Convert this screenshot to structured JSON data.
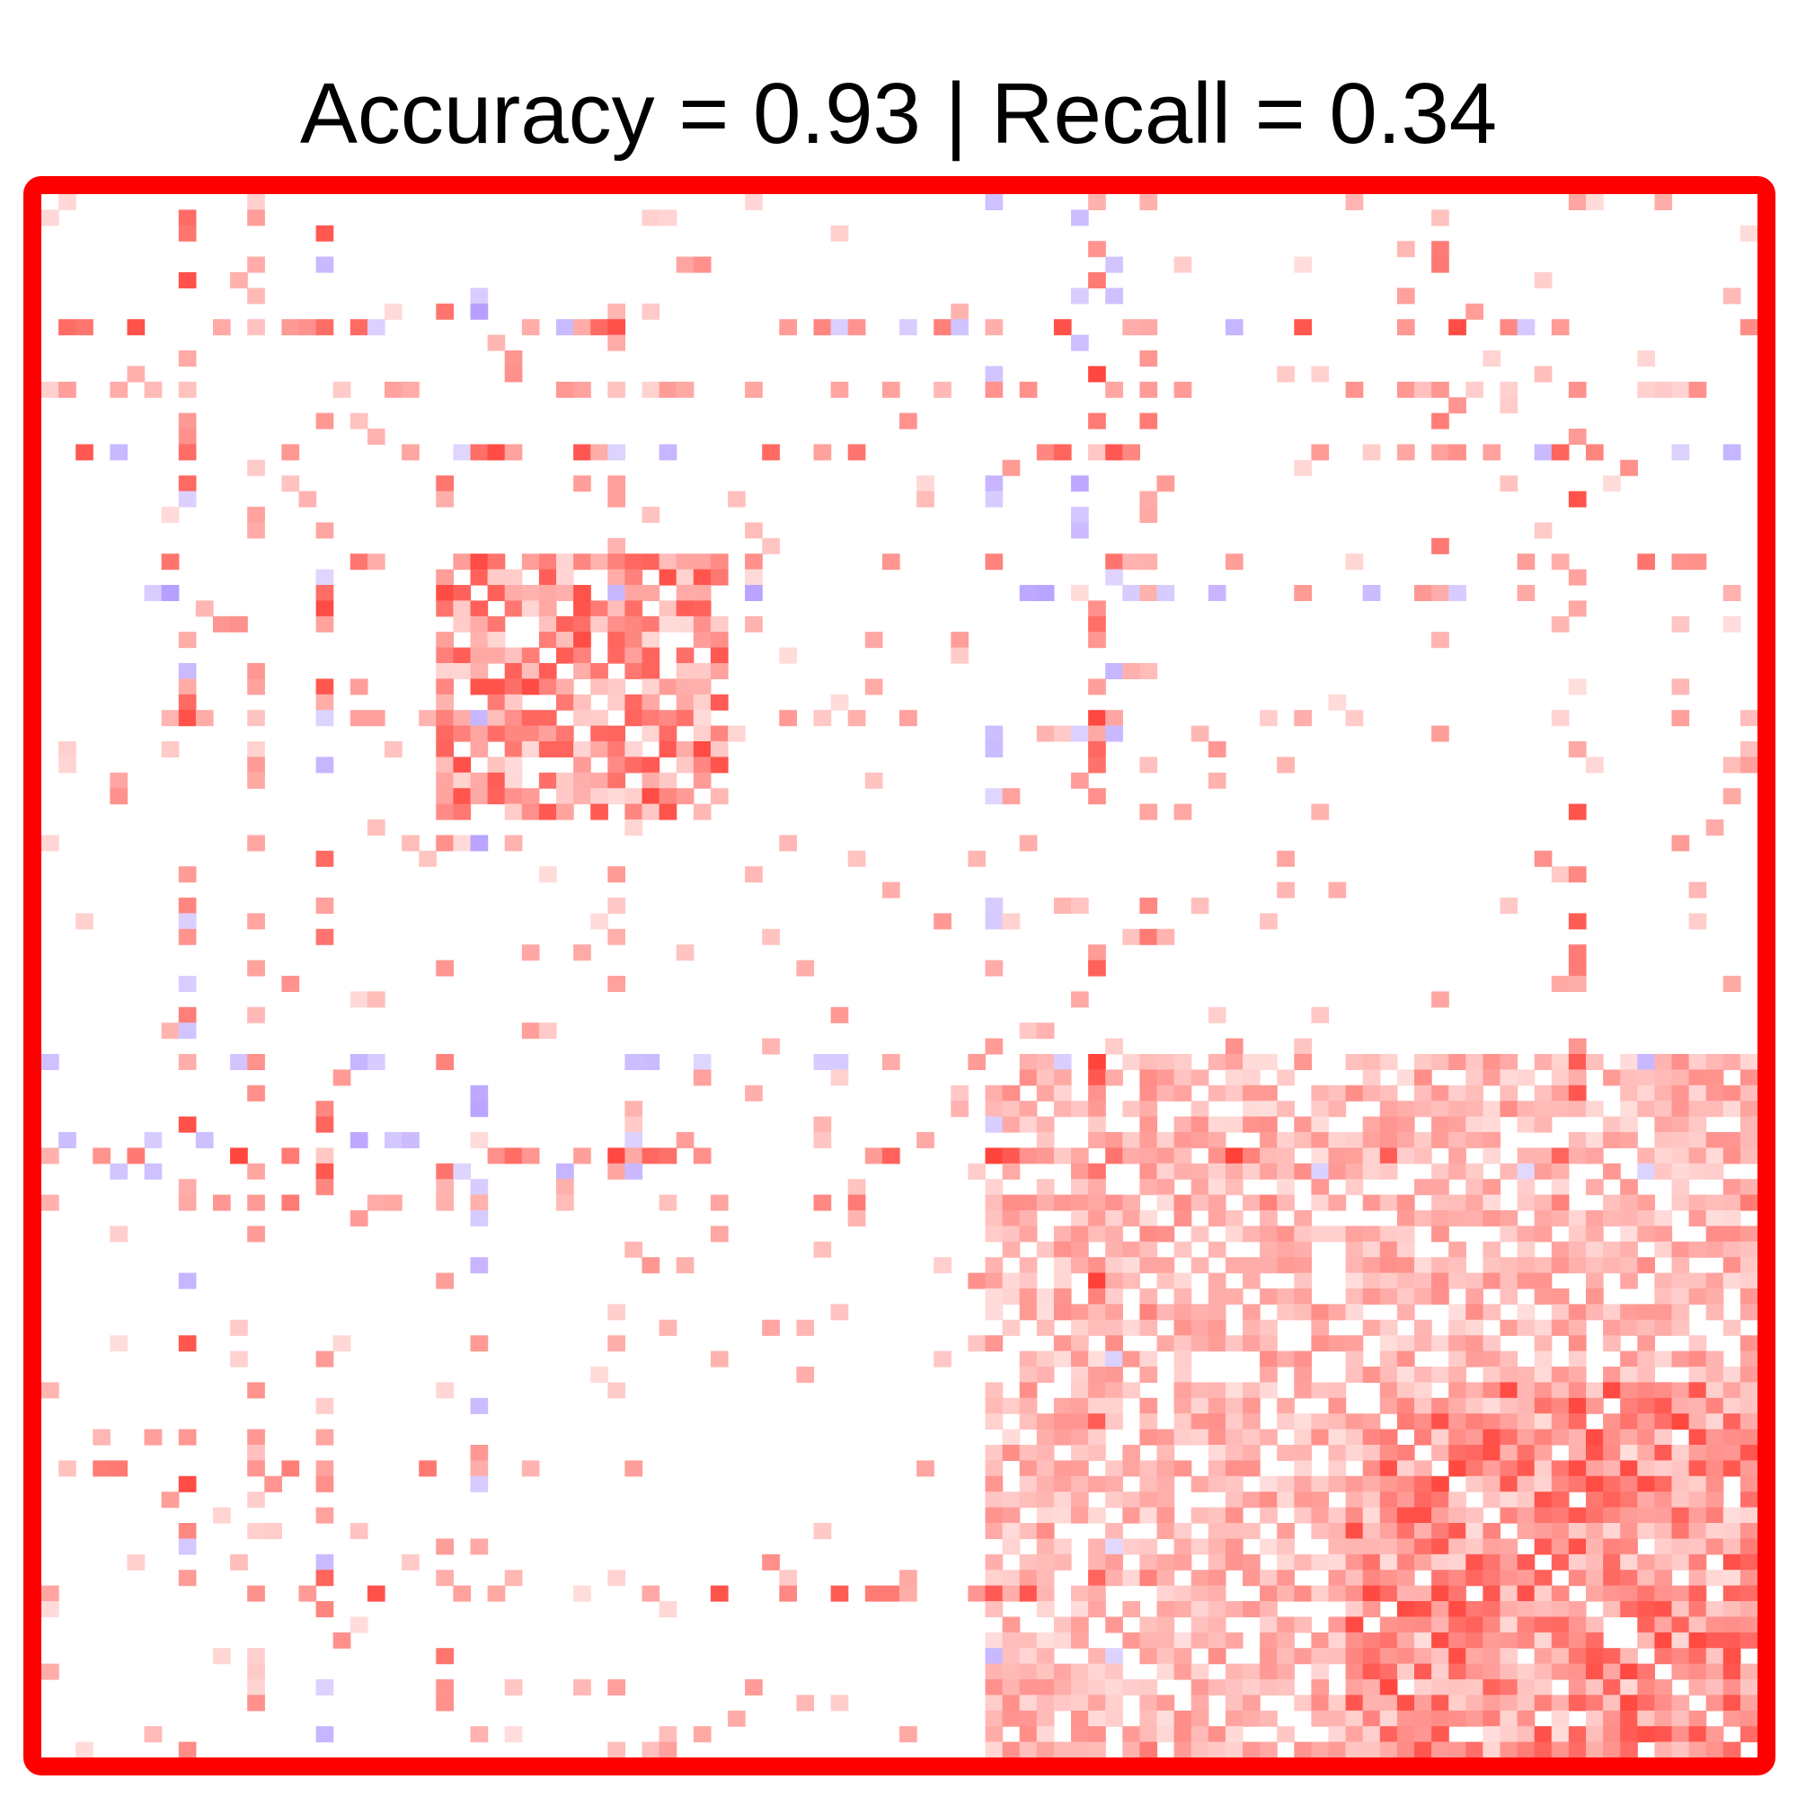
{
  "title": "Accuracy = 0.93 | Recall = 0.34",
  "colors": {
    "frame": "#ff0000",
    "positive": "#ff0000",
    "negative": "#6a3cff",
    "background": "#ffffff"
  },
  "chart_data": {
    "type": "heatmap",
    "title": "Accuracy = 0.93 | Recall = 0.34",
    "metrics": {
      "accuracy": 0.93,
      "recall": 0.34
    },
    "n": 100,
    "value_range": [
      -1,
      1
    ],
    "colormap": "diverging blue-white-red, positive = red, negative = purple-blue",
    "symmetric": true,
    "diagonal": 0,
    "grid": false,
    "legend": "none",
    "clusters": [
      {
        "index_range": [
          23,
          39
        ],
        "mean_strength": 0.55
      },
      {
        "index_range": [
          76,
          99
        ],
        "mean_strength": 0.55
      },
      {
        "index_range": [
          55,
          99
        ],
        "mean_strength": 0.3
      }
    ],
    "hub_rows": [
      {
        "index": 8,
        "strength": 0.8
      },
      {
        "index": 12,
        "strength": 0.5
      },
      {
        "index": 16,
        "strength": 0.8
      },
      {
        "index": 23,
        "strength": 0.75
      },
      {
        "index": 33,
        "strength": 0.45
      },
      {
        "index": 61,
        "strength": 0.85
      },
      {
        "index": 64,
        "strength": 0.6
      },
      {
        "index": 81,
        "strength": 0.6
      },
      {
        "index": 89,
        "strength": 0.8
      }
    ],
    "negative_rows": [
      {
        "index": 8,
        "strength": 0.4
      },
      {
        "index": 16,
        "strength": 0.4
      },
      {
        "index": 25,
        "strength": 0.5
      },
      {
        "index": 55,
        "strength": 0.4
      },
      {
        "index": 60,
        "strength": 0.45
      },
      {
        "index": 62,
        "strength": 0.4
      }
    ],
    "sparse_positive_density": 0.035,
    "seed": 7
  }
}
